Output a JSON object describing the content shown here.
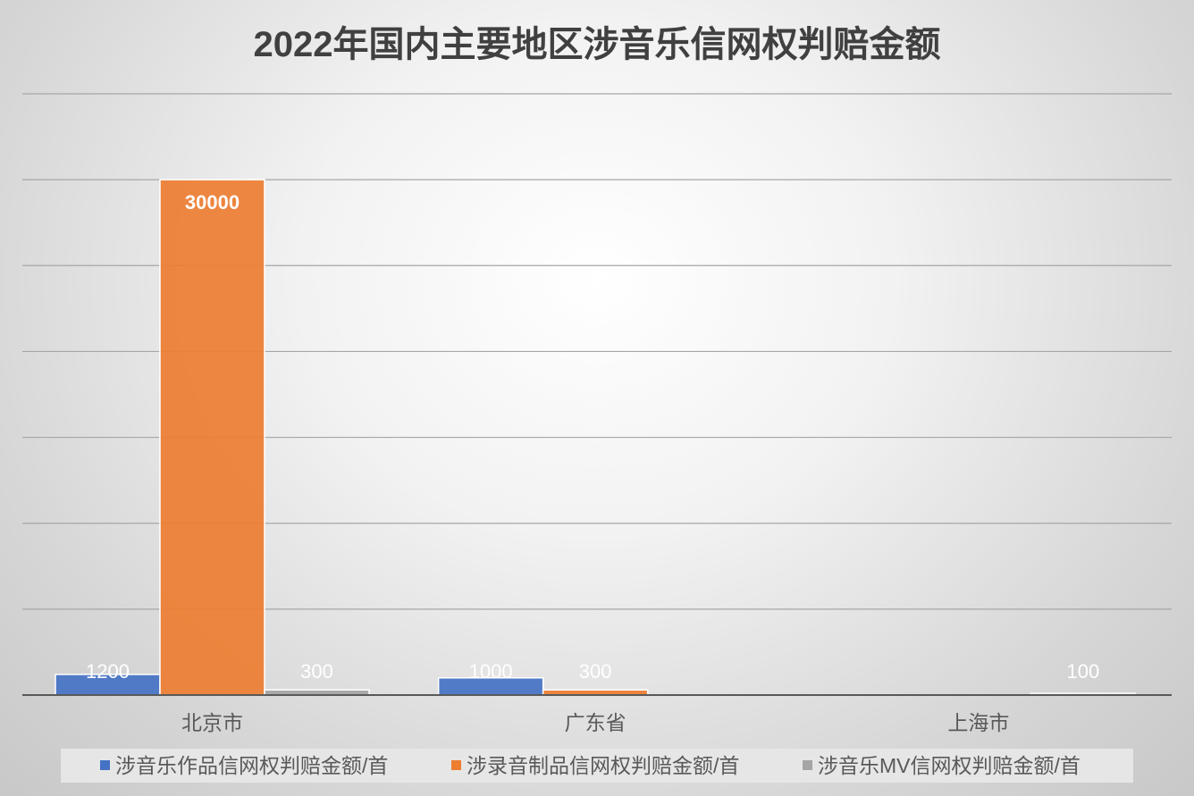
{
  "chart_data": {
    "type": "bar",
    "title": "2022年国内主要地区涉音乐信网权判赔金额",
    "categories": [
      "北京市",
      "广东省",
      "上海市"
    ],
    "series": [
      {
        "name": "涉音乐作品信网权判赔金额/首",
        "values": [
          1200,
          1000,
          null
        ]
      },
      {
        "name": "涉录音制品信网权判赔金额/首",
        "values": [
          30000,
          300,
          null
        ]
      },
      {
        "name": "涉音乐MV信网权判赔金额/首",
        "values": [
          300,
          null,
          100
        ]
      }
    ],
    "data_labels": [
      [
        "1200",
        "1000",
        ""
      ],
      [
        "30000",
        "300",
        ""
      ],
      [
        "300",
        "",
        "100"
      ]
    ],
    "ylim": [
      0,
      35000
    ],
    "y_gridline_step": 5000,
    "grid": true,
    "legend_position": "bottom",
    "colors": {
      "series": [
        "#4472C4",
        "#ED7D31",
        "#A5A5A5"
      ],
      "title": "#404040",
      "axis_text": "#595959",
      "gridline": "#a6a6a6",
      "data_label": "#ffffff",
      "legend_bg": "#e6e6e6"
    }
  }
}
